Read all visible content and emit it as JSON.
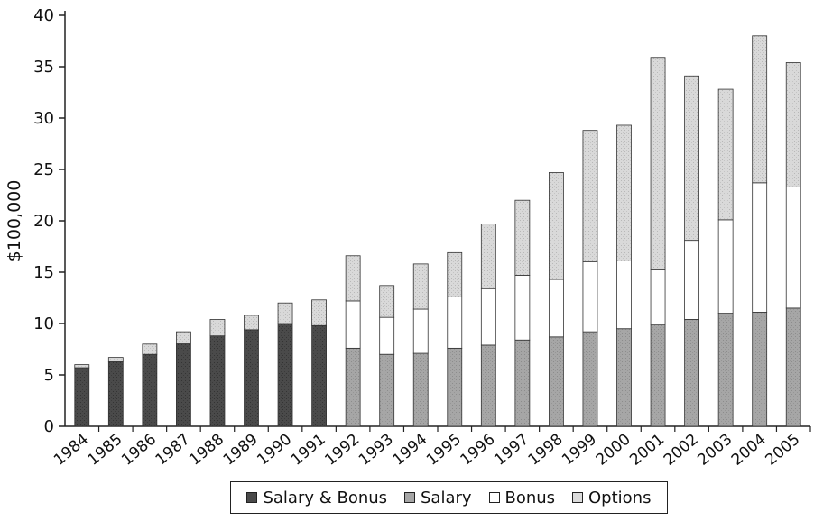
{
  "chart_data": {
    "type": "bar",
    "stacked": true,
    "title": "",
    "xlabel": "",
    "ylabel": "$100,000",
    "ylim": [
      0,
      40
    ],
    "yticks": [
      0,
      5,
      10,
      15,
      20,
      25,
      30,
      35,
      40
    ],
    "grid": false,
    "legend_position": "bottom",
    "categories": [
      "1984",
      "1985",
      "1986",
      "1987",
      "1988",
      "1989",
      "1990",
      "1991",
      "1992",
      "1993",
      "1994",
      "1995",
      "1996",
      "1997",
      "1998",
      "1999",
      "2000",
      "2001",
      "2002",
      "2003",
      "2004",
      "2005"
    ],
    "series": [
      {
        "name": "Salary & Bonus",
        "color": "#4a4a4a",
        "values": [
          5.7,
          6.3,
          7.0,
          8.1,
          8.8,
          9.4,
          10.0,
          9.8,
          0,
          0,
          0,
          0,
          0,
          0,
          0,
          0,
          0,
          0,
          0,
          0,
          0,
          0
        ]
      },
      {
        "name": "Salary",
        "color": "#a6a6a6",
        "values": [
          0,
          0,
          0,
          0,
          0,
          0,
          0,
          0,
          7.6,
          7.0,
          7.1,
          7.6,
          7.9,
          8.4,
          8.7,
          9.2,
          9.5,
          9.9,
          10.4,
          11.0,
          11.1,
          11.5
        ]
      },
      {
        "name": "Bonus",
        "color": "#ffffff",
        "values": [
          0,
          0,
          0,
          0,
          0,
          0,
          0,
          0,
          4.6,
          3.6,
          4.3,
          5.0,
          5.5,
          6.3,
          5.6,
          6.8,
          6.6,
          5.4,
          7.7,
          9.1,
          12.6,
          11.8
        ]
      },
      {
        "name": "Options",
        "color": "#d9d9d9",
        "values": [
          0.3,
          0.4,
          1.0,
          1.1,
          1.6,
          1.4,
          2.0,
          2.5,
          4.4,
          3.1,
          4.4,
          4.3,
          6.3,
          7.3,
          10.4,
          12.8,
          13.2,
          20.6,
          16.0,
          12.7,
          14.3,
          12.1
        ]
      }
    ]
  }
}
